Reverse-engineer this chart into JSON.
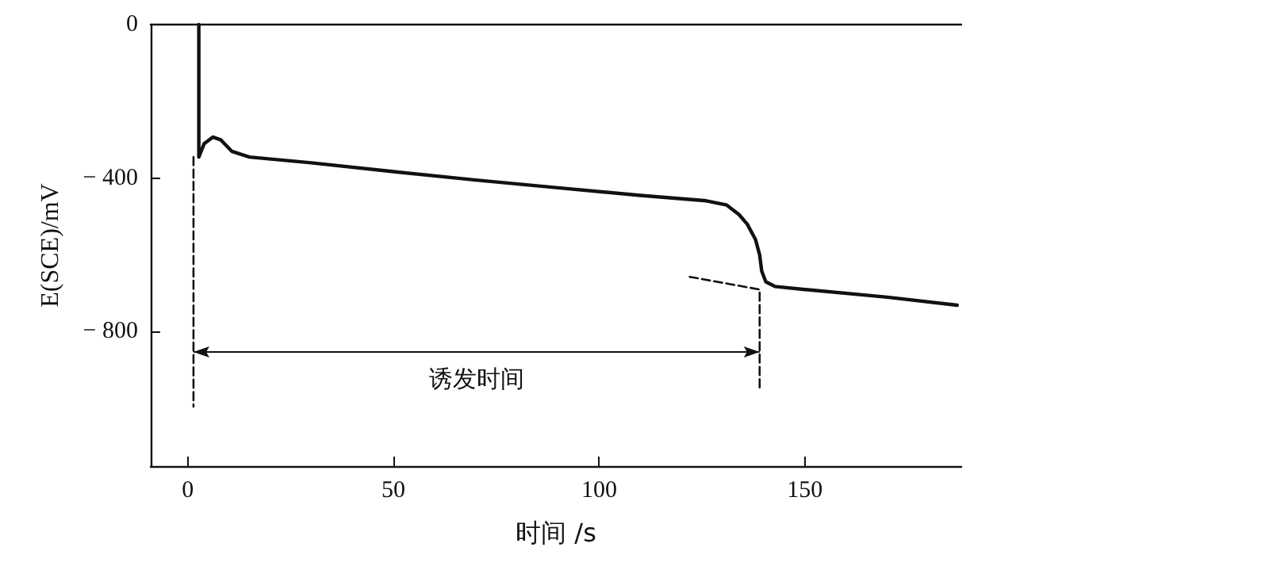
{
  "chart_data": {
    "type": "line",
    "xlabel": "时间 /s",
    "ylabel": "E(SCE)/mV",
    "xlim": [
      -9,
      188
    ],
    "ylim": [
      -1150,
      0
    ],
    "xticks": [
      0,
      50,
      100,
      150
    ],
    "yticks": [
      0,
      -400,
      -800
    ],
    "grid": false,
    "marker": "none",
    "annotations": [
      "诱发时间"
    ],
    "series": [
      {
        "color": "#111111",
        "line_style": "solid",
        "x": [
          2.7,
          2.7,
          4,
          6.1,
          8,
          10.7,
          15,
          30,
          50,
          70,
          90,
          110,
          126,
          131,
          134,
          136,
          138,
          139,
          139.5,
          140.5,
          142.7,
          150,
          170,
          187
        ],
        "values": [
          0,
          -345,
          -310,
          -293,
          -300,
          -330,
          -345,
          -360,
          -383,
          -405,
          -425,
          -445,
          -459,
          -470,
          -495,
          -520,
          -560,
          -600,
          -642,
          -670,
          -682,
          -690,
          -710,
          -731
        ]
      },
      {
        "color": "#111111",
        "line_style": "dashed",
        "x": [
          1.4,
          1.4
        ],
        "values": [
          -345,
          -995
        ]
      },
      {
        "color": "#111111",
        "line_style": "dashed",
        "x": [
          122,
          139,
          139
        ],
        "values": [
          -657,
          -690,
          -954
        ]
      }
    ]
  }
}
